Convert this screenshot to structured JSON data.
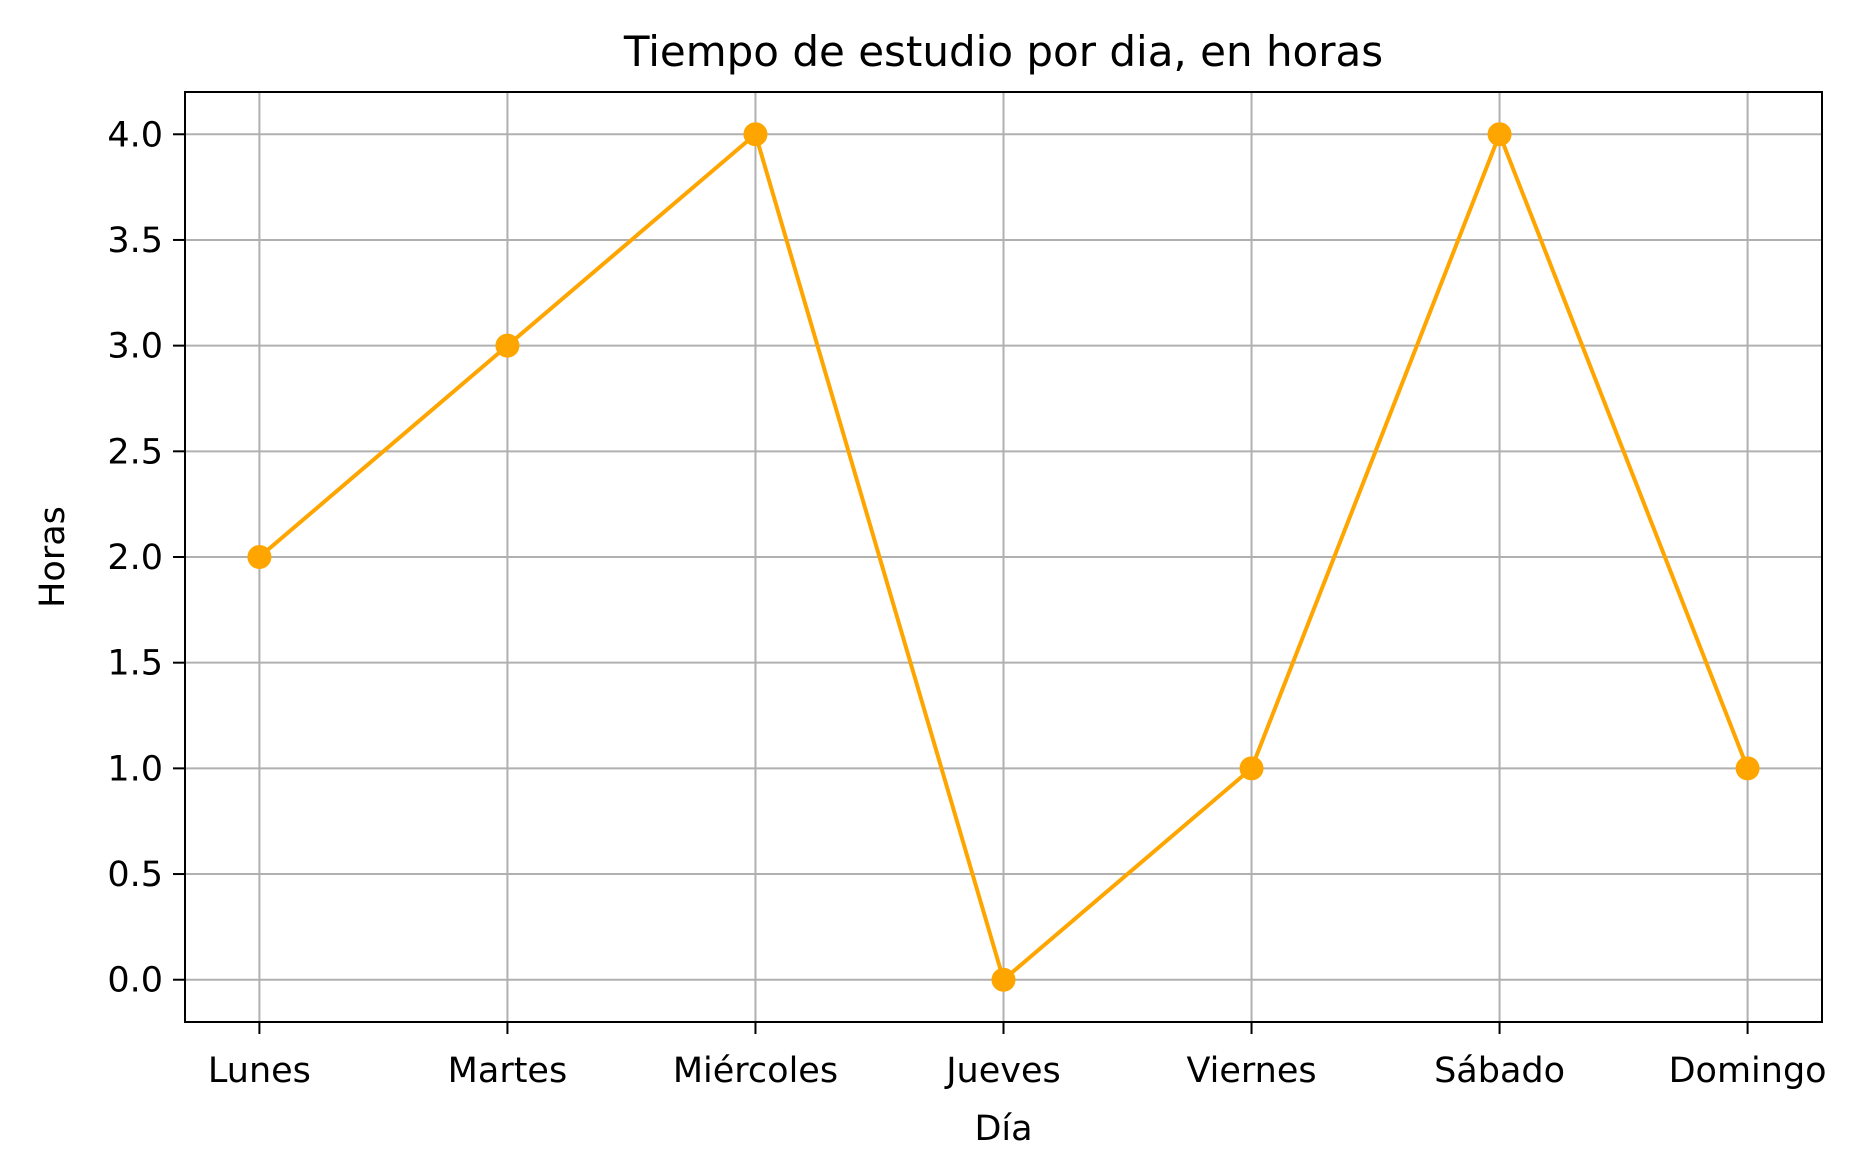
{
  "chart_data": {
    "type": "line",
    "title": "Tiempo de estudio por dia, en horas",
    "xlabel": "Día",
    "ylabel": "Horas",
    "categories": [
      "Lunes",
      "Martes",
      "Miércoles",
      "Jueves",
      "Viernes",
      "Sábado",
      "Domingo"
    ],
    "series": [
      {
        "values": [
          2,
          3,
          4,
          0,
          1,
          4,
          1
        ],
        "color": "#FFA500",
        "marker": "circle"
      }
    ],
    "ylim": [
      -0.2,
      4.2
    ],
    "yticks": [
      0.0,
      0.5,
      1.0,
      1.5,
      2.0,
      2.5,
      3.0,
      3.5,
      4.0
    ],
    "ytick_labels": [
      "0.0",
      "0.5",
      "1.0",
      "1.5",
      "2.0",
      "2.5",
      "3.0",
      "3.5",
      "4.0"
    ],
    "grid": true,
    "legend": "none"
  }
}
